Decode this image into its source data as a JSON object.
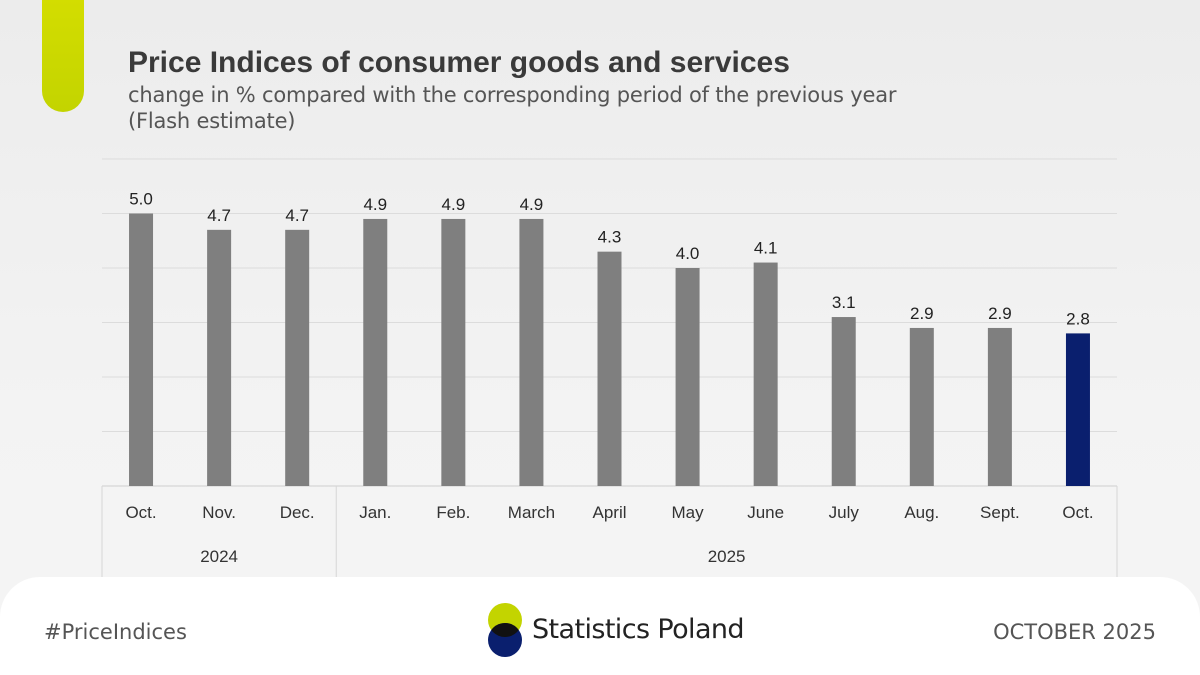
{
  "header": {
    "title": "Price Indices of consumer goods and services",
    "subtitle_line1": "change in % compared with the corresponding period of the previous year",
    "subtitle_line2": "(Flash estimate)"
  },
  "chart_data": {
    "type": "bar",
    "categories": [
      "Oct.",
      "Nov.",
      "Dec.",
      "Jan.",
      "Feb.",
      "March",
      "April",
      "May",
      "June",
      "July",
      "Aug.",
      "Sept.",
      "Oct."
    ],
    "values": [
      5.0,
      4.7,
      4.7,
      4.9,
      4.9,
      4.9,
      4.3,
      4.0,
      4.1,
      3.1,
      2.9,
      2.9,
      2.8
    ],
    "value_labels": [
      "5.0",
      "4.7",
      "4.7",
      "4.9",
      "4.9",
      "4.9",
      "4.3",
      "4.0",
      "4.1",
      "3.1",
      "2.9",
      "2.9",
      "2.8"
    ],
    "groups": [
      {
        "label": "2024",
        "count": 3
      },
      {
        "label": "2025",
        "count": 10
      }
    ],
    "ylim": [
      0,
      6
    ],
    "grid": true,
    "bar_color": "#7f7f7f",
    "highlight_color": "#0a1f6e",
    "highlight_index": 12
  },
  "footer": {
    "hashtag": "#PriceIndices",
    "logo_text": "Statistics Poland",
    "date": "OCTOBER 2025",
    "logo_colors": {
      "top": "#c3d400",
      "bottom": "#0a1f6e",
      "overlap": "#111111"
    }
  }
}
